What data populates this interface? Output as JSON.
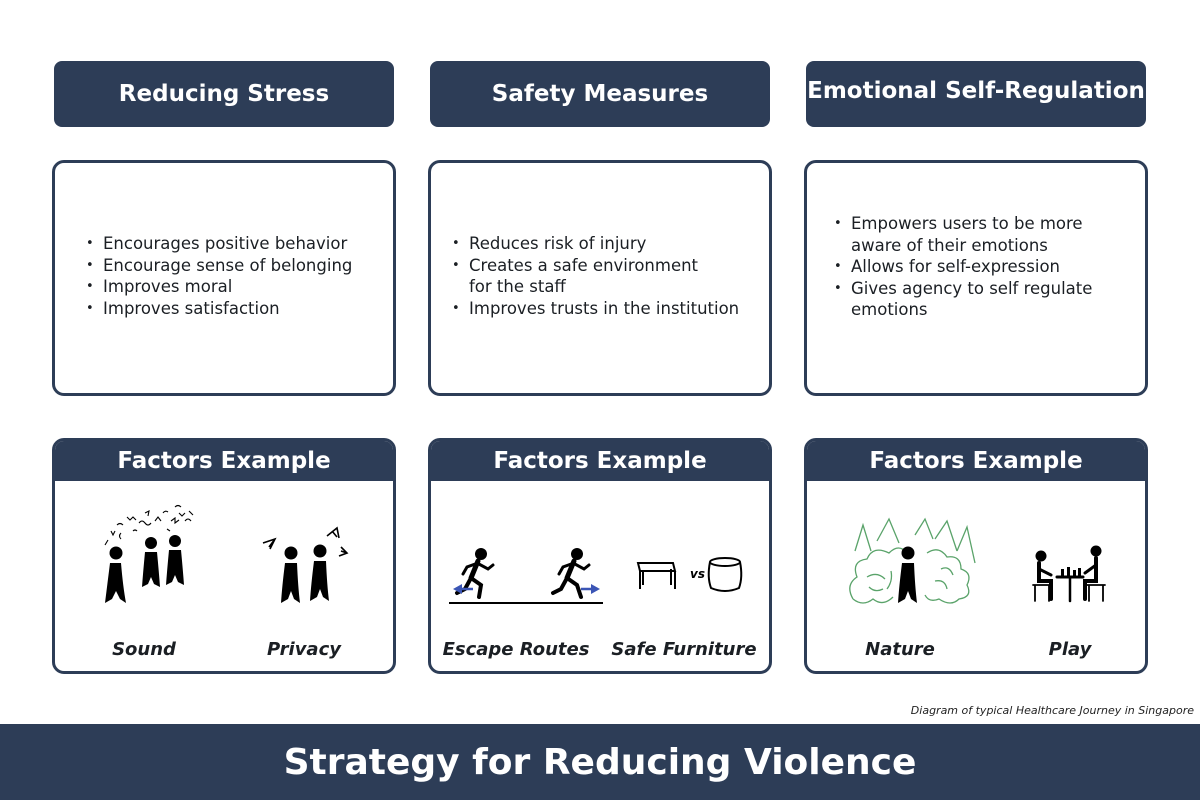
{
  "columns": [
    {
      "title": "Reducing Stress",
      "bullets": [
        "Encourages positive behavior",
        "Encourage sense of belonging",
        "Improves moral",
        "Improves satisfaction"
      ],
      "factors_header": "Factors Example",
      "factor_left": "Sound",
      "factor_right": "Privacy"
    },
    {
      "title": "Safety Measures",
      "bullets": [
        "Reduces risk of injury",
        "Creates a safe environment\nfor the staff",
        "Improves trusts in the institution"
      ],
      "factors_header": "Factors Example",
      "factor_left": "Escape Routes",
      "factor_right": "Safe Furniture",
      "vs_label": "vs"
    },
    {
      "title": "Emotional Self-Regulation",
      "bullets": [
        "Empowers users to be more aware of their emotions",
        "Allows for self-expression",
        "Gives agency to self regulate emotions"
      ],
      "factors_header": "Factors Example",
      "factor_left": "Nature",
      "factor_right": "Play"
    }
  ],
  "caption": "Diagram of typical Healthcare Journey in Singapore",
  "footer_title": "Strategy for Reducing Violence",
  "colors": {
    "navy": "#2d3d57",
    "arrow_blue": "#3b55b5",
    "nature_green": "#5aa36a"
  },
  "icons": [
    "people-sound-icon",
    "people-privacy-icon",
    "running-person-icon",
    "table-icon",
    "stool-icon",
    "person-in-nature-icon",
    "people-playing-chess-icon"
  ]
}
